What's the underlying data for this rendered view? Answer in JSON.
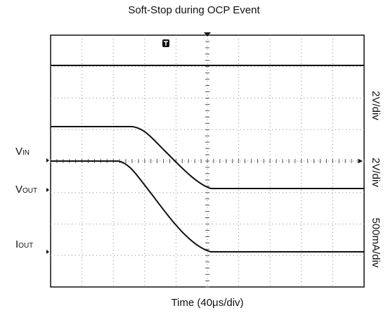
{
  "title": "Soft-Stop during OCP Event",
  "x_label": "Time (40μs/div)",
  "channels": [
    {
      "label": "V",
      "sub": "IN",
      "scale": "2V/div"
    },
    {
      "label": "V",
      "sub": "OUT",
      "scale": "2V/div"
    },
    {
      "label": "I",
      "sub": "OUT",
      "scale": "500mA/div"
    }
  ]
}
